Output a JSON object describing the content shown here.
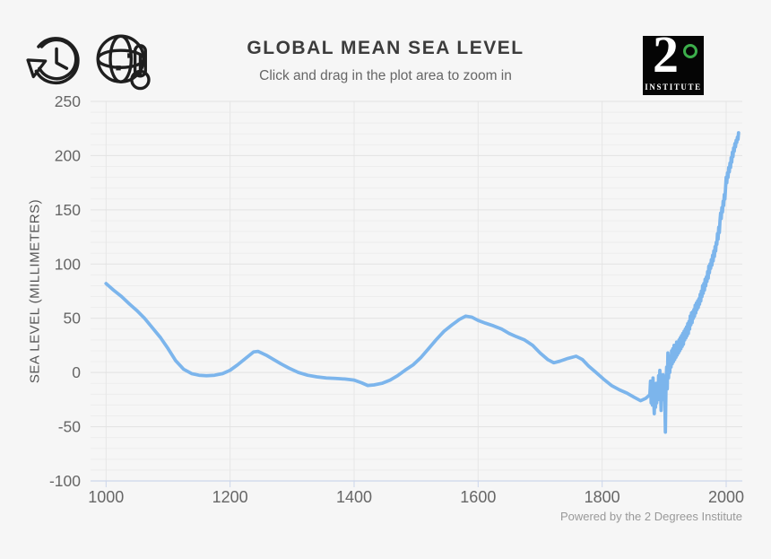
{
  "header": {
    "icons": [
      {
        "name": "history-reset-icon"
      },
      {
        "name": "globe-thermometer-icon"
      }
    ],
    "logo": {
      "big": "2",
      "degree": "°",
      "small": "INSTITUTE",
      "bg_color": "#050505",
      "degree_color": "#3cae4b"
    }
  },
  "footer": {
    "credit": "Powered by the 2 Degrees Institute"
  },
  "colors": {
    "background": "#f6f6f6",
    "line": "#7cb5ec",
    "axis_line": "#ccd6eb",
    "grid_major": "#e2e2e2",
    "grid_minor": "#ededed",
    "grid_vertical": "#e6e6e6",
    "tick_text": "#666666"
  },
  "chart_data": {
    "type": "line",
    "title": "GLOBAL MEAN SEA LEVEL",
    "subtitle": "Click and drag in the plot area to zoom in",
    "xlabel": "",
    "ylabel": "SEA LEVEL (MILLIMETERS)",
    "xlim": [
      975,
      2026
    ],
    "ylim": [
      -100,
      250
    ],
    "x_ticks": [
      1000,
      1200,
      1400,
      1600,
      1800,
      2000
    ],
    "y_ticks": [
      -100,
      -50,
      0,
      50,
      100,
      150,
      200,
      250
    ],
    "y_minor_step": 10,
    "grid": true,
    "legend": "none",
    "series": [
      {
        "name": "Global mean sea level (mm)",
        "points": [
          [
            1000,
            82
          ],
          [
            1012,
            76
          ],
          [
            1025,
            70
          ],
          [
            1038,
            63
          ],
          [
            1050,
            57
          ],
          [
            1062,
            50
          ],
          [
            1075,
            41
          ],
          [
            1088,
            32
          ],
          [
            1100,
            22
          ],
          [
            1112,
            11
          ],
          [
            1125,
            3
          ],
          [
            1138,
            -1
          ],
          [
            1150,
            -2.5
          ],
          [
            1162,
            -3
          ],
          [
            1175,
            -2.5
          ],
          [
            1188,
            -1
          ],
          [
            1200,
            2
          ],
          [
            1212,
            7
          ],
          [
            1225,
            13
          ],
          [
            1238,
            19
          ],
          [
            1245,
            19.5
          ],
          [
            1258,
            16
          ],
          [
            1270,
            12
          ],
          [
            1282,
            8
          ],
          [
            1295,
            4
          ],
          [
            1310,
            0
          ],
          [
            1325,
            -2.5
          ],
          [
            1340,
            -4
          ],
          [
            1355,
            -5
          ],
          [
            1370,
            -5.5
          ],
          [
            1385,
            -6
          ],
          [
            1400,
            -7
          ],
          [
            1412,
            -9.5
          ],
          [
            1422,
            -12
          ],
          [
            1432,
            -11.5
          ],
          [
            1445,
            -10
          ],
          [
            1458,
            -7
          ],
          [
            1470,
            -3
          ],
          [
            1482,
            2
          ],
          [
            1495,
            7
          ],
          [
            1508,
            14
          ],
          [
            1520,
            22
          ],
          [
            1532,
            30
          ],
          [
            1545,
            38
          ],
          [
            1558,
            44
          ],
          [
            1570,
            49
          ],
          [
            1580,
            52
          ],
          [
            1590,
            51
          ],
          [
            1600,
            48
          ],
          [
            1612,
            45.5
          ],
          [
            1625,
            43
          ],
          [
            1638,
            40
          ],
          [
            1650,
            36
          ],
          [
            1662,
            33
          ],
          [
            1675,
            30
          ],
          [
            1688,
            25
          ],
          [
            1700,
            18
          ],
          [
            1712,
            12
          ],
          [
            1722,
            9
          ],
          [
            1732,
            10.5
          ],
          [
            1745,
            13
          ],
          [
            1758,
            15
          ],
          [
            1768,
            12
          ],
          [
            1778,
            6
          ],
          [
            1790,
            0
          ],
          [
            1802,
            -6
          ],
          [
            1815,
            -12
          ],
          [
            1828,
            -16
          ],
          [
            1840,
            -19
          ],
          [
            1852,
            -23
          ],
          [
            1862,
            -26
          ],
          [
            1870,
            -24
          ],
          [
            1876,
            -21
          ],
          [
            1877,
            -20
          ],
          [
            1878,
            -8
          ],
          [
            1879,
            -28
          ],
          [
            1880,
            -12
          ],
          [
            1881,
            -30
          ],
          [
            1882,
            -5
          ],
          [
            1883,
            -25
          ],
          [
            1884,
            -38
          ],
          [
            1885,
            -15
          ],
          [
            1886,
            -32
          ],
          [
            1887,
            -10
          ],
          [
            1888,
            -28
          ],
          [
            1889,
            -16
          ],
          [
            1890,
            -25
          ],
          [
            1891,
            -3
          ],
          [
            1892,
            -18
          ],
          [
            1893,
            2
          ],
          [
            1894,
            -14
          ],
          [
            1895,
            -35
          ],
          [
            1896,
            -8
          ],
          [
            1897,
            -20
          ],
          [
            1898,
            -2
          ],
          [
            1899,
            -25
          ],
          [
            1900,
            -10
          ],
          [
            1901,
            -22
          ],
          [
            1902,
            -55
          ],
          [
            1903,
            -12
          ],
          [
            1904,
            5
          ],
          [
            1905,
            -15
          ],
          [
            1906,
            18
          ],
          [
            1907,
            -5
          ],
          [
            1908,
            12
          ],
          [
            1909,
            0
          ],
          [
            1910,
            15
          ],
          [
            1911,
            5
          ],
          [
            1912,
            20
          ],
          [
            1913,
            8
          ],
          [
            1914,
            22
          ],
          [
            1915,
            10
          ],
          [
            1916,
            25
          ],
          [
            1917,
            12
          ],
          [
            1918,
            24
          ],
          [
            1919,
            14
          ],
          [
            1920,
            28
          ],
          [
            1921,
            16
          ],
          [
            1922,
            25
          ],
          [
            1923,
            18
          ],
          [
            1924,
            30
          ],
          [
            1925,
            20
          ],
          [
            1926,
            32
          ],
          [
            1927,
            22
          ],
          [
            1928,
            34
          ],
          [
            1929,
            24
          ],
          [
            1930,
            36
          ],
          [
            1931,
            26
          ],
          [
            1932,
            38
          ],
          [
            1933,
            30
          ],
          [
            1934,
            40
          ],
          [
            1935,
            32
          ],
          [
            1936,
            42
          ],
          [
            1937,
            34
          ],
          [
            1938,
            45
          ],
          [
            1939,
            36
          ],
          [
            1940,
            47
          ],
          [
            1941,
            40
          ],
          [
            1942,
            52
          ],
          [
            1943,
            44
          ],
          [
            1944,
            55
          ],
          [
            1945,
            46
          ],
          [
            1946,
            56
          ],
          [
            1947,
            50
          ],
          [
            1948,
            58
          ],
          [
            1949,
            52
          ],
          [
            1950,
            62
          ],
          [
            1951,
            55
          ],
          [
            1952,
            64
          ],
          [
            1953,
            58
          ],
          [
            1954,
            66
          ],
          [
            1955,
            60
          ],
          [
            1956,
            68
          ],
          [
            1957,
            63
          ],
          [
            1958,
            72
          ],
          [
            1959,
            66
          ],
          [
            1960,
            75
          ],
          [
            1961,
            70
          ],
          [
            1962,
            80
          ],
          [
            1963,
            73
          ],
          [
            1964,
            82
          ],
          [
            1965,
            76
          ],
          [
            1966,
            86
          ],
          [
            1967,
            80
          ],
          [
            1968,
            88
          ],
          [
            1969,
            84
          ],
          [
            1970,
            93
          ],
          [
            1971,
            87
          ],
          [
            1972,
            98
          ],
          [
            1973,
            92
          ],
          [
            1974,
            100
          ],
          [
            1975,
            96
          ],
          [
            1976,
            104
          ],
          [
            1977,
            99
          ],
          [
            1978,
            108
          ],
          [
            1979,
            103
          ],
          [
            1980,
            112
          ],
          [
            1981,
            107
          ],
          [
            1982,
            116
          ],
          [
            1983,
            112
          ],
          [
            1984,
            120
          ],
          [
            1985,
            118
          ],
          [
            1986,
            128
          ],
          [
            1987,
            123
          ],
          [
            1988,
            134
          ],
          [
            1989,
            129
          ],
          [
            1990,
            140
          ],
          [
            1991,
            147
          ],
          [
            1992,
            142
          ],
          [
            1993,
            152
          ],
          [
            1994,
            148
          ],
          [
            1995,
            158
          ],
          [
            1996,
            154
          ],
          [
            1997,
            164
          ],
          [
            1998,
            160
          ],
          [
            1999,
            170
          ],
          [
            2000,
            180
          ],
          [
            2001,
            175
          ],
          [
            2002,
            184
          ],
          [
            2003,
            180
          ],
          [
            2004,
            189
          ],
          [
            2005,
            185
          ],
          [
            2006,
            193
          ],
          [
            2007,
            189
          ],
          [
            2008,
            198
          ],
          [
            2009,
            194
          ],
          [
            2010,
            203
          ],
          [
            2011,
            199
          ],
          [
            2012,
            207
          ],
          [
            2013,
            204
          ],
          [
            2014,
            211
          ],
          [
            2015,
            208
          ],
          [
            2016,
            214
          ],
          [
            2017,
            212
          ],
          [
            2018,
            217
          ],
          [
            2019,
            215
          ],
          [
            2020,
            221
          ]
        ]
      }
    ]
  }
}
